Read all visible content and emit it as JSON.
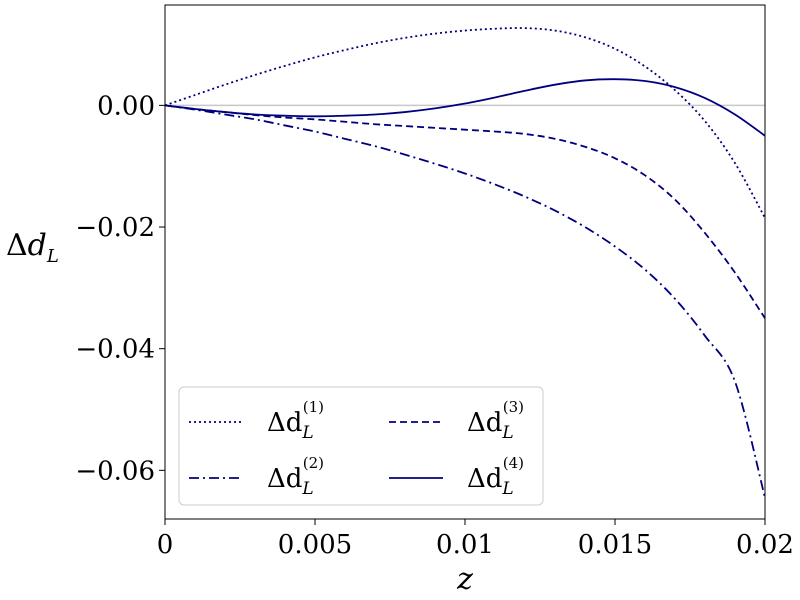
{
  "chart_data": {
    "type": "line",
    "xlabel": "z",
    "ylabel": "Δd_L",
    "xlim": [
      0,
      0.02
    ],
    "ylim": [
      -0.068,
      0.0165
    ],
    "x_ticks": [
      {
        "value": 0,
        "label": "0"
      },
      {
        "value": 0.005,
        "label": "0.005"
      },
      {
        "value": 0.01,
        "label": "0.01"
      },
      {
        "value": 0.015,
        "label": "0.015"
      },
      {
        "value": 0.02,
        "label": "0.02"
      }
    ],
    "y_ticks": [
      {
        "value": 0,
        "label": "0.00"
      },
      {
        "value": -0.02,
        "label": "−0.02"
      },
      {
        "value": -0.04,
        "label": "−0.04"
      },
      {
        "value": -0.06,
        "label": "−0.06"
      }
    ],
    "reference_line": {
      "y": 0,
      "color": "#c8c8c8"
    },
    "line_color": "#00007f",
    "legend": {
      "placement": "lower-left",
      "columns": 2
    },
    "series": [
      {
        "name": "Δd_L^(1)",
        "base": "Δd",
        "sub": "L",
        "sup": "(1)",
        "style": "dotted",
        "x": [
          0,
          0.001,
          0.002,
          0.003,
          0.004,
          0.005,
          0.006,
          0.007,
          0.008,
          0.009,
          0.01,
          0.011,
          0.012,
          0.013,
          0.014,
          0.015,
          0.016,
          0.017,
          0.018,
          0.019,
          0.02
        ],
        "y": [
          0,
          0.0017,
          0.0034,
          0.005,
          0.0065,
          0.0079,
          0.0091,
          0.0102,
          0.0111,
          0.0118,
          0.0123,
          0.0126,
          0.0127,
          0.0123,
          0.0112,
          0.0093,
          0.0064,
          0.0025,
          -0.0026,
          -0.0095,
          -0.0185
        ]
      },
      {
        "name": "Δd_L^(2)",
        "base": "Δd",
        "sub": "L",
        "sup": "(2)",
        "style": "dashdot",
        "x": [
          0,
          0.001,
          0.002,
          0.003,
          0.004,
          0.005,
          0.006,
          0.007,
          0.008,
          0.009,
          0.01,
          0.011,
          0.012,
          0.013,
          0.014,
          0.015,
          0.016,
          0.017,
          0.018,
          0.019,
          0.02
        ],
        "y": [
          0,
          -0.0007,
          -0.0015,
          -0.0023,
          -0.0033,
          -0.0043,
          -0.0055,
          -0.0067,
          -0.0081,
          -0.0096,
          -0.0112,
          -0.013,
          -0.015,
          -0.0173,
          -0.02,
          -0.0232,
          -0.027,
          -0.0318,
          -0.0379,
          -0.0454,
          -0.0645
        ]
      },
      {
        "name": "Δd_L^(3)",
        "base": "Δd",
        "sub": "L",
        "sup": "(3)",
        "style": "dashed",
        "x": [
          0,
          0.001,
          0.002,
          0.003,
          0.004,
          0.005,
          0.006,
          0.007,
          0.008,
          0.009,
          0.01,
          0.011,
          0.012,
          0.013,
          0.014,
          0.015,
          0.016,
          0.017,
          0.018,
          0.019,
          0.02
        ],
        "y": [
          0,
          -0.0006,
          -0.0011,
          -0.0016,
          -0.002,
          -0.0023,
          -0.0027,
          -0.0031,
          -0.0034,
          -0.0037,
          -0.004,
          -0.0043,
          -0.0047,
          -0.0055,
          -0.0068,
          -0.0087,
          -0.0115,
          -0.0155,
          -0.021,
          -0.0275,
          -0.035
        ]
      },
      {
        "name": "Δd_L^(4)",
        "base": "Δd",
        "sub": "L",
        "sup": "(4)",
        "style": "solid",
        "x": [
          0,
          0.001,
          0.002,
          0.003,
          0.004,
          0.005,
          0.006,
          0.007,
          0.008,
          0.009,
          0.01,
          0.011,
          0.012,
          0.013,
          0.014,
          0.015,
          0.016,
          0.017,
          0.018,
          0.019,
          0.02
        ],
        "y": [
          0,
          -0.0006,
          -0.0011,
          -0.0015,
          -0.0017,
          -0.0018,
          -0.0017,
          -0.0015,
          -0.0011,
          -0.0005,
          0.0003,
          0.0013,
          0.0024,
          0.0034,
          0.0041,
          0.0043,
          0.004,
          0.003,
          0.0012,
          -0.0015,
          -0.005
        ]
      }
    ]
  }
}
